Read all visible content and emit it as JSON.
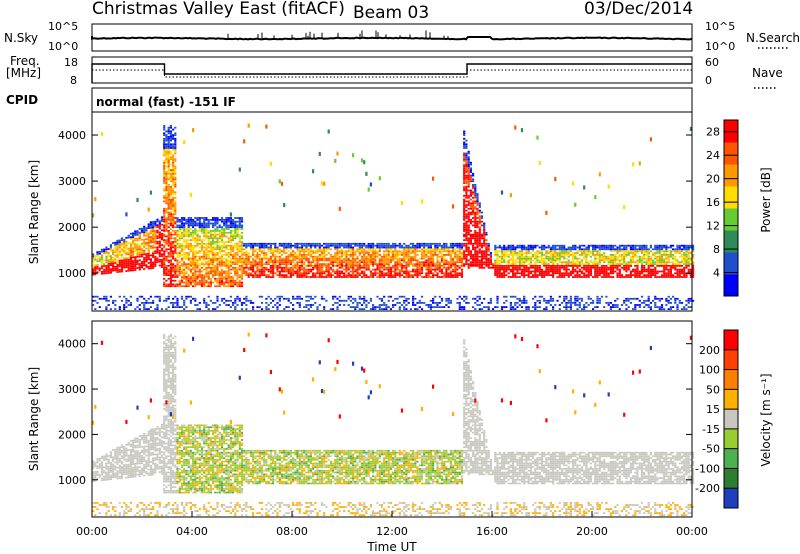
{
  "header": {
    "station": "Christmas Valley East (fitACF)",
    "beam": "Beam 03",
    "date": "03/Dec/2014"
  },
  "summary": {
    "nsky_label": "N.Sky",
    "nsearch_label": "N.Search",
    "nsky_ticks": [
      "10^5",
      "10^0"
    ],
    "freq_label": [
      "Freq.",
      "[MHz]"
    ],
    "freq_ticks": [
      "18",
      "8"
    ],
    "nave_label": "Nave",
    "nave_ticks": [
      "60",
      "0"
    ],
    "cpid_label": "CPID",
    "cpid_value": "normal (fast) -151 IF"
  },
  "colors": {
    "power_scale": [
      "#0000ff",
      "#1f4fcf",
      "#2e8b57",
      "#66cc33",
      "#ffdd00",
      "#ff9900",
      "#ff5500",
      "#ff0000"
    ],
    "velocity_scale": [
      "#1f3fbf",
      "#2e7d32",
      "#4caf50",
      "#9acd32",
      "#c8c8c0",
      "#ffb000",
      "#ff8000",
      "#ff4000",
      "#ff0000"
    ],
    "ground_scatter": "#c8c8c0"
  },
  "chart_data": [
    {
      "type": "heatmap",
      "name": "power-panel",
      "ylabel": "Slant Range [km]",
      "x_range": [
        "00:00",
        "24:00"
      ],
      "ylim": [
        180,
        4500
      ],
      "yticks": [
        1000,
        2000,
        3000,
        4000
      ],
      "colorbar_label": "Power [dB]",
      "colorbar_ticks": [
        4,
        8,
        12,
        16,
        20,
        24,
        28
      ],
      "colorbar_range": [
        0,
        30
      ]
    },
    {
      "type": "heatmap",
      "name": "velocity-panel",
      "ylabel": "Slant Range [km]",
      "x_range": [
        "00:00",
        "24:00"
      ],
      "ylim": [
        180,
        4500
      ],
      "yticks": [
        1000,
        2000,
        3000,
        4000
      ],
      "colorbar_label": "Velocity [m s⁻¹]",
      "colorbar_ticks": [
        200,
        100,
        50,
        15,
        -15,
        -50,
        -100,
        -200
      ],
      "xlabel": "Time UT",
      "xticks": [
        "00:00",
        "04:00",
        "08:00",
        "12:00",
        "16:00",
        "20:00",
        "00:00"
      ]
    }
  ]
}
